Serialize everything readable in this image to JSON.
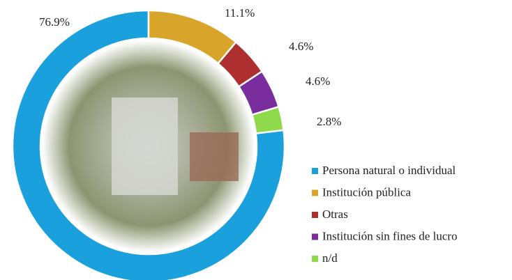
{
  "chart_data": {
    "type": "donut",
    "categories": [
      "Persona natural o individual",
      "Institución pública",
      "Otras",
      "Institución sin fines de lucro",
      "n/d"
    ],
    "values": [
      76.9,
      11.1,
      4.6,
      4.6,
      2.8
    ],
    "value_labels": [
      "76.9%",
      "11.1%",
      "4.6%",
      "4.6%",
      "2.8%"
    ],
    "colors": [
      "#1aa1dd",
      "#d9a42a",
      "#ad2f2f",
      "#7a2d9c",
      "#8fd94d"
    ],
    "legend": "right"
  }
}
